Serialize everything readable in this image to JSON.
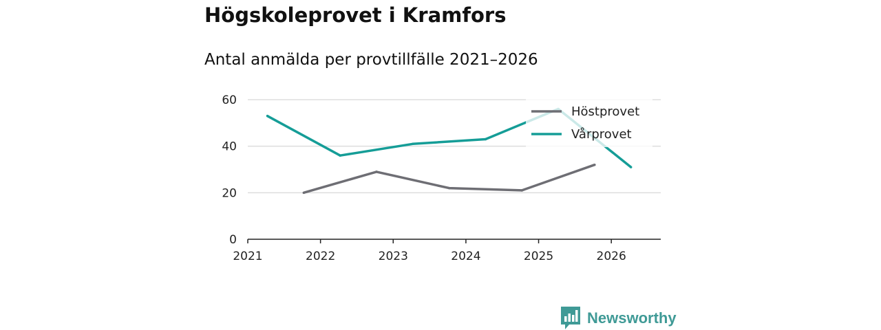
{
  "header": {
    "title": "Högskoleprovet i Kramfors",
    "subtitle": "Antal anmälda per provtillfälle 2021–2026"
  },
  "brand": {
    "name": "Newsworthy",
    "color": "#3f9a96",
    "icon": "newsworthy-logo-icon"
  },
  "chart_data": {
    "type": "line",
    "title": "Högskoleprovet i Kramfors",
    "subtitle": "Antal anmälda per provtillfälle 2021–2026",
    "xlabel": "",
    "ylabel": "",
    "xlim": [
      2021,
      2026.68
    ],
    "ylim": [
      0,
      60
    ],
    "x_ticks": [
      2021,
      2022,
      2023,
      2024,
      2025,
      2026
    ],
    "x_tick_labels": [
      "2021",
      "2022",
      "2023",
      "2024",
      "2025",
      "2026"
    ],
    "y_ticks": [
      0,
      20,
      40,
      60
    ],
    "y_tick_labels": [
      "0",
      "20",
      "40",
      "60"
    ],
    "grid": true,
    "legend_position": "top-right",
    "series": [
      {
        "name": "Höstprovet",
        "color": "#6e6e74",
        "x": [
          2021.77,
          2022.77,
          2023.77,
          2024.77,
          2025.77
        ],
        "values": [
          20,
          29,
          22,
          21,
          32
        ]
      },
      {
        "name": "Vårprovet",
        "color": "#159d97",
        "x": [
          2021.27,
          2022.27,
          2023.27,
          2024.27,
          2025.27,
          2026.27
        ],
        "values": [
          53,
          36,
          41,
          43,
          56,
          31
        ]
      }
    ]
  }
}
